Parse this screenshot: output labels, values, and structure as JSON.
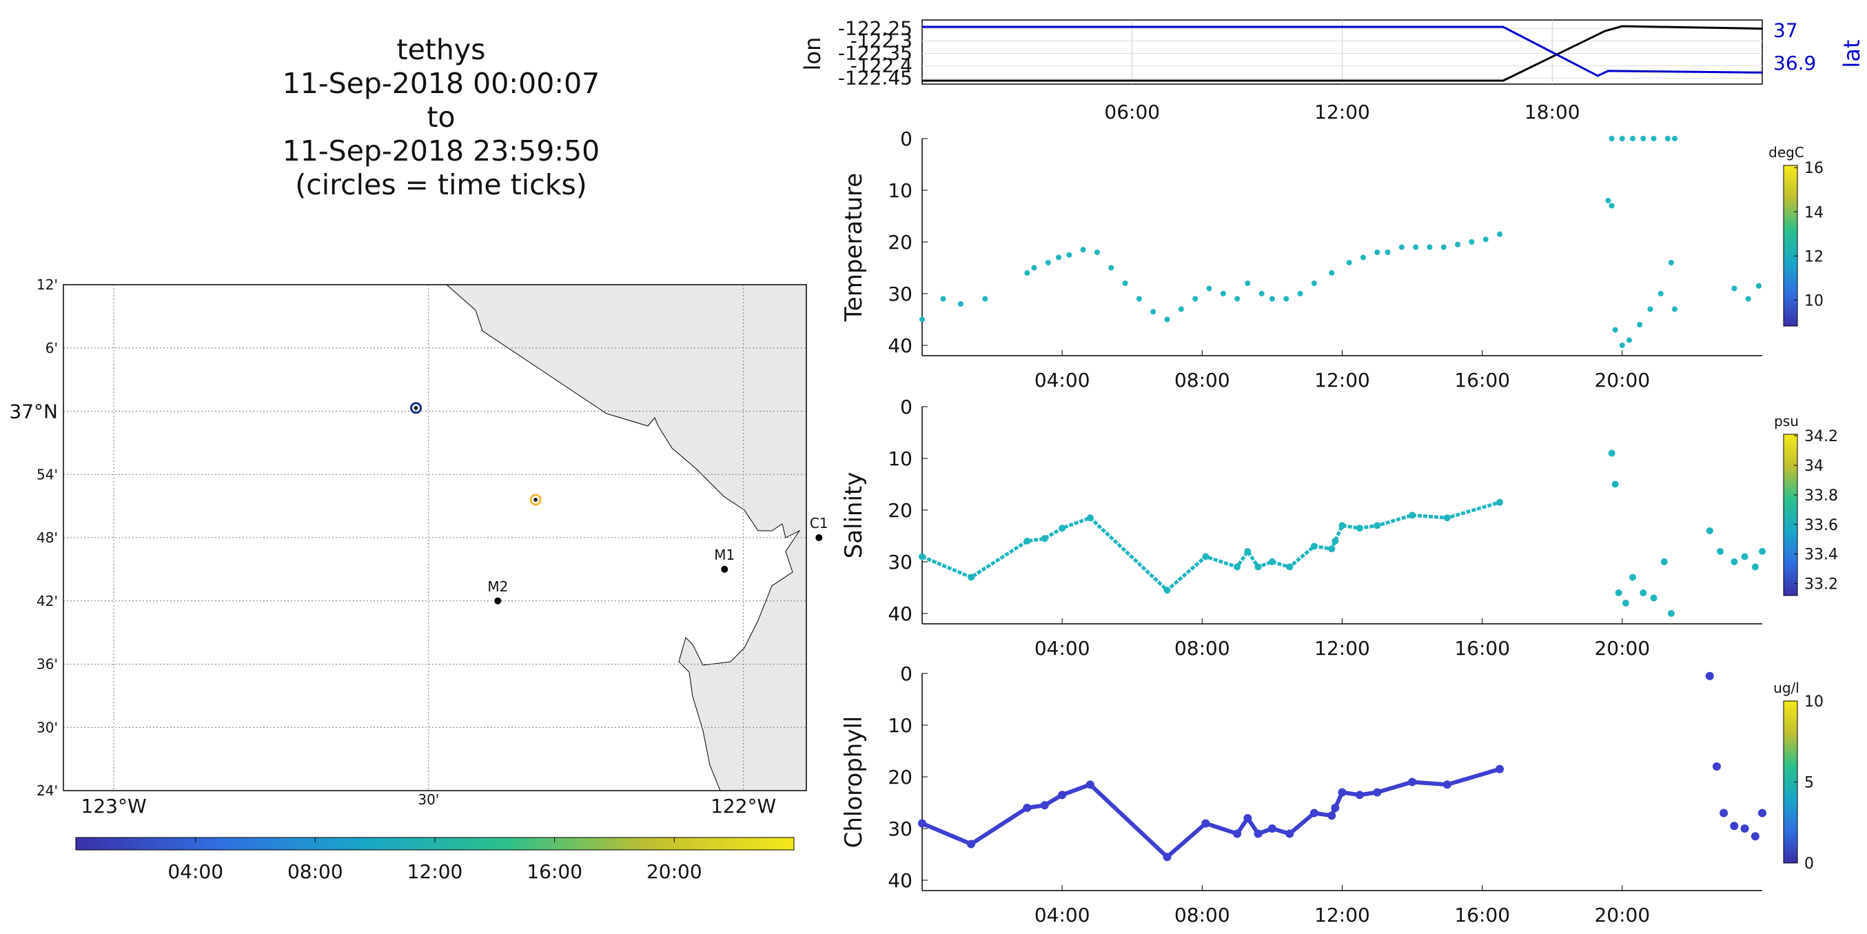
{
  "title": {
    "lines": [
      "tethys",
      "11-Sep-2018 00:00:07",
      "to",
      "11-Sep-2018 23:59:50",
      "(circles = time ticks)"
    ]
  },
  "map": {
    "lat_ticks": [
      "12'",
      "6'",
      "37°N",
      "54'",
      "48'",
      "42'",
      "36'",
      "30'",
      "24'"
    ],
    "lon_ticks": [
      "123°W",
      "30'",
      "122°W"
    ],
    "lat_range": [
      36.4,
      37.2
    ],
    "lon_range": [
      -123.08,
      -121.9
    ],
    "stations": [
      {
        "name": "M2",
        "lon": -122.39,
        "lat": 36.7
      },
      {
        "name": "M1",
        "lon": -122.03,
        "lat": 36.75
      },
      {
        "name": "C1",
        "lon": -121.88,
        "lat": 36.8
      }
    ],
    "track_ticks": [
      {
        "lon": -122.52,
        "lat": 37.005,
        "color": "#1a2a8a"
      },
      {
        "lon": -122.33,
        "lat": 36.86,
        "color": "#f3b436"
      }
    ],
    "colorbar_ticks": [
      "04:00",
      "08:00",
      "12:00",
      "16:00",
      "20:00"
    ]
  },
  "chart_data": [
    {
      "type": "line",
      "panel": "position",
      "ylabel": "lon",
      "ylabel_right": "lat",
      "x_ticks": [
        "06:00",
        "12:00",
        "18:00"
      ],
      "xlim_hours": [
        0,
        24
      ],
      "yticks": [
        "-122.25",
        "-122.3",
        "-122.35",
        "-122.4",
        "-122.45"
      ],
      "yticks_right": [
        "37",
        "36.9"
      ],
      "series": [
        {
          "name": "lon",
          "color": "#000000",
          "x": [
            0,
            16.6,
            19.5,
            20.0,
            24
          ],
          "y": [
            -122.46,
            -122.46,
            -122.26,
            -122.24,
            -122.25
          ]
        },
        {
          "name": "lat",
          "color": "#0000cc",
          "x": [
            0,
            16.6,
            19.3,
            19.6,
            24
          ],
          "y": [
            37.01,
            37.01,
            36.86,
            36.875,
            36.87
          ]
        }
      ]
    },
    {
      "type": "scatter",
      "panel": "Temperature",
      "ylabel": "Temperature",
      "colorbar_label": "degC",
      "colorbar_ticks": [
        "16",
        "14",
        "12",
        "10"
      ],
      "x_ticks": [
        "04:00",
        "08:00",
        "12:00",
        "16:00",
        "20:00"
      ],
      "yticks": [
        "0",
        "10",
        "20",
        "30",
        "40"
      ],
      "ylim": [
        0,
        42
      ],
      "x": [
        0.0,
        0.6,
        1.1,
        1.8,
        3.0,
        3.2,
        3.6,
        3.9,
        4.2,
        4.6,
        5.0,
        5.4,
        5.8,
        6.2,
        6.6,
        7.0,
        7.4,
        7.8,
        8.2,
        8.6,
        9.0,
        9.3,
        9.7,
        10.0,
        10.4,
        10.8,
        11.2,
        11.7,
        12.2,
        12.6,
        13.0,
        13.3,
        13.7,
        14.1,
        14.5,
        14.9,
        15.3,
        15.7,
        16.1,
        16.5,
        19.6,
        19.7,
        19.8,
        20.0,
        20.2,
        20.5,
        20.8,
        21.1,
        21.4,
        21.5,
        19.7,
        20.0,
        20.3,
        20.6,
        20.9,
        21.3,
        21.5,
        23.2,
        23.6,
        23.9
      ],
      "y": [
        35,
        31,
        32,
        31,
        26,
        25,
        24,
        23,
        22.5,
        21.5,
        22,
        25,
        28,
        31,
        33.5,
        35,
        33,
        31,
        29,
        30,
        31,
        28,
        30,
        31,
        31,
        30,
        28,
        26,
        24,
        23,
        22,
        22,
        21,
        21,
        21,
        21,
        20.5,
        20,
        19.5,
        18.5,
        12,
        13,
        37,
        40,
        39,
        36,
        33,
        30,
        24,
        33,
        0,
        0,
        0,
        0,
        0,
        0,
        0,
        29,
        31,
        28.5
      ],
      "color_scale": [
        "#3a2fa8",
        "#2f6fe0",
        "#1aa6c8",
        "#2cc08a",
        "#c0bf30",
        "#f5e81c"
      ]
    },
    {
      "type": "scatter",
      "panel": "Salinity",
      "ylabel": "Salinity",
      "colorbar_label": "psu",
      "colorbar_ticks": [
        "34.2",
        "34",
        "33.8",
        "33.6",
        "33.4",
        "33.2"
      ],
      "x_ticks": [
        "04:00",
        "08:00",
        "12:00",
        "16:00",
        "20:00"
      ],
      "yticks": [
        "0",
        "10",
        "20",
        "30",
        "40"
      ],
      "ylim": [
        0,
        42
      ],
      "x": [
        0.0,
        1.4,
        3.0,
        3.5,
        4.0,
        4.8,
        7.0,
        8.1,
        9.0,
        9.3,
        9.6,
        10.0,
        10.5,
        11.2,
        11.7,
        11.8,
        12.0,
        12.5,
        13.0,
        14.0,
        15.0,
        16.5,
        19.7,
        19.8,
        19.9,
        20.1,
        20.3,
        20.6,
        20.9,
        21.2,
        21.4,
        22.5,
        22.8,
        23.2,
        23.5,
        23.8,
        24.0
      ],
      "y": [
        29,
        33,
        26,
        25.5,
        23.5,
        21.5,
        35.5,
        29,
        31,
        28,
        31,
        30,
        31,
        27,
        27.5,
        26,
        23,
        23.5,
        23,
        21,
        21.5,
        18.5,
        9,
        15,
        36,
        38,
        33,
        36,
        37,
        30,
        40,
        24,
        28,
        30,
        29,
        31,
        28
      ],
      "color_scale": [
        "#3a2fa8",
        "#2f6fe0",
        "#1aa6c8",
        "#2cc08a",
        "#c0bf30",
        "#f5e81c"
      ]
    },
    {
      "type": "scatter",
      "panel": "Chlorophyll",
      "ylabel": "Chlorophyll",
      "colorbar_label": "ug/l",
      "colorbar_ticks": [
        "10",
        "5",
        "0"
      ],
      "x_ticks": [
        "04:00",
        "08:00",
        "12:00",
        "16:00",
        "20:00"
      ],
      "yticks": [
        "0",
        "10",
        "20",
        "30",
        "40"
      ],
      "ylim": [
        0,
        42
      ],
      "x": [
        0.0,
        1.4,
        3.0,
        3.5,
        4.0,
        4.8,
        7.0,
        8.1,
        9.0,
        9.3,
        9.6,
        10.0,
        10.5,
        11.2,
        11.7,
        11.8,
        12.0,
        12.5,
        13.0,
        14.0,
        15.0,
        16.5,
        22.5,
        22.7,
        22.9,
        23.2,
        23.5,
        23.8,
        24.0
      ],
      "y": [
        29,
        33,
        26,
        25.5,
        23.5,
        21.5,
        35.5,
        29,
        31,
        28,
        31,
        30,
        31,
        27,
        27.5,
        26,
        23,
        23.5,
        23,
        21,
        21.5,
        18.5,
        0.5,
        18,
        27,
        29.5,
        30,
        31.5,
        27
      ],
      "color_scale": [
        "#3a2fa8",
        "#2f6fe0",
        "#1aa6c8",
        "#2cc08a",
        "#c0bf30",
        "#f5e81c"
      ]
    }
  ]
}
